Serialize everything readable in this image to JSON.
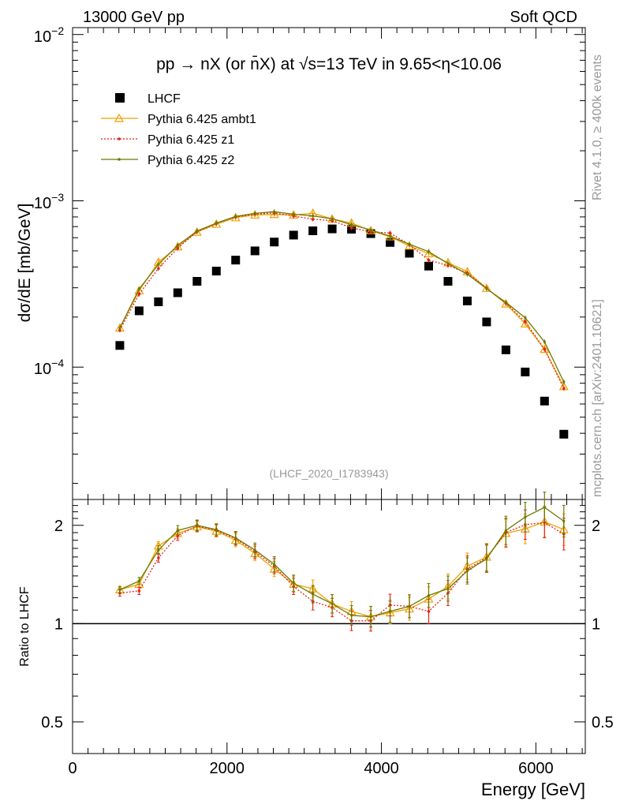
{
  "header": {
    "left": "13000 GeV pp",
    "right": "Soft QCD"
  },
  "side_labels": {
    "rivet": "Rivet 4.1.0, ≥ 400k events",
    "mcplots": "mcplots.cern.ch [arXiv:2401.10621]"
  },
  "colors": {
    "lhcf": "#000000",
    "ambt1": "#f0a000",
    "z1": "#e8231a",
    "z2": "#6b7a00",
    "ref_line": "#000000",
    "watermark": "#999999",
    "side": "#999999"
  },
  "chart_data": [
    {
      "type": "scatter",
      "panel": "main",
      "title": "pp → nX (or n̄X) at √s=13 TeV in 9.65<η<10.06",
      "watermark": "(LHCF_2020_I1783943)",
      "xlabel": "Energy [GeV]",
      "ylabel": "dσ/dE [mb/GeV]",
      "yscale": "log",
      "xlim": [
        0,
        6640
      ],
      "ylim": [
        1.6e-05,
        0.011
      ],
      "ytick_labels": [
        "10⁻⁴",
        "10⁻³",
        "10⁻²"
      ],
      "legend_position": "top-left",
      "x": [
        612,
        862,
        1112,
        1362,
        1612,
        1862,
        2112,
        2362,
        2612,
        2862,
        3112,
        3362,
        3612,
        3862,
        4112,
        4362,
        4612,
        4862,
        5112,
        5362,
        5612,
        5862,
        6112,
        6362
      ],
      "series": [
        {
          "name": "LHCF",
          "style": "square",
          "values": [
            0.000135,
            0.000218,
            0.000247,
            0.00028,
            0.000328,
            0.000378,
            0.00044,
            0.0005,
            0.000565,
            0.000622,
            0.00066,
            0.000678,
            0.000675,
            0.000635,
            0.000562,
            0.000484,
            0.000405,
            0.000328,
            0.00025,
            0.000187,
            0.000127,
            9.35e-05,
            6.25e-05,
            3.95e-05
          ]
        },
        {
          "name": "Pythia 6.425 ambt1",
          "style": "triangle",
          "values": [
            0.000172,
            0.000288,
            0.000428,
            0.00053,
            0.000648,
            0.000724,
            0.000792,
            0.000822,
            0.000828,
            0.000822,
            0.000842,
            0.000778,
            0.000735,
            0.000662,
            0.000608,
            0.000535,
            0.000482,
            0.000425,
            0.000375,
            0.000298,
            0.00024,
            0.000182,
            0.000128,
            7.65e-05
          ]
        },
        {
          "name": "Pythia 6.425 z1",
          "style": "dotted",
          "values": [
            0.000167,
            0.000275,
            0.000392,
            0.00052,
            0.000652,
            0.00073,
            0.0008,
            0.00083,
            0.000845,
            0.00081,
            0.000775,
            0.00076,
            0.000688,
            0.00065,
            0.00064,
            0.000545,
            0.00044,
            0.000408,
            0.000368,
            0.000298,
            0.000242,
            0.000188,
            0.000128,
            7.45e-05
          ]
        },
        {
          "name": "Pythia 6.425 z2",
          "style": "solid",
          "values": [
            0.000172,
            0.000295,
            0.000415,
            0.00054,
            0.000658,
            0.000735,
            0.000805,
            0.00084,
            0.00086,
            0.00083,
            0.000812,
            0.00078,
            0.000718,
            0.000668,
            0.000612,
            0.000548,
            0.000495,
            0.00042,
            0.000362,
            0.000296,
            0.000245,
            0.000198,
            0.000142,
            8.15e-05
          ]
        }
      ]
    },
    {
      "type": "line",
      "panel": "ratio",
      "ylabel": "Ratio to LHCF",
      "xlabel": "Energy [GeV]",
      "yscale": "log",
      "xlim": [
        0,
        6640
      ],
      "ylim": [
        0.4,
        2.4
      ],
      "yticks": [
        0.5,
        1,
        2
      ],
      "ytick_labels": [
        "0.5",
        "1",
        "2"
      ],
      "xticks": [
        0,
        2000,
        4000,
        6000
      ],
      "xtick_labels": [
        "0",
        "2000",
        "4000",
        "6000"
      ],
      "reference": 1,
      "x": [
        612,
        862,
        1112,
        1362,
        1612,
        1862,
        2112,
        2362,
        2612,
        2862,
        3112,
        3362,
        3612,
        3862,
        4112,
        4362,
        4612,
        4862,
        5112,
        5362,
        5612,
        5862,
        6112,
        6362
      ],
      "series": [
        {
          "name": "Pythia 6.425 ambt1",
          "values": [
            1.27,
            1.32,
            1.73,
            1.89,
            1.98,
            1.92,
            1.8,
            1.64,
            1.47,
            1.32,
            1.28,
            1.15,
            1.09,
            1.05,
            1.08,
            1.11,
            1.19,
            1.3,
            1.5,
            1.6,
            1.89,
            1.95,
            2.05,
            1.94
          ]
        },
        {
          "name": "Pythia 6.425 z1",
          "values": [
            1.24,
            1.26,
            1.59,
            1.86,
            1.99,
            1.93,
            1.82,
            1.66,
            1.5,
            1.3,
            1.17,
            1.12,
            1.02,
            1.02,
            1.14,
            1.13,
            1.09,
            1.24,
            1.47,
            1.59,
            1.9,
            2.01,
            2.04,
            1.88
          ]
        },
        {
          "name": "Pythia 6.425 z2",
          "values": [
            1.27,
            1.35,
            1.68,
            1.93,
            2.0,
            1.94,
            1.83,
            1.68,
            1.52,
            1.33,
            1.23,
            1.15,
            1.06,
            1.05,
            1.09,
            1.13,
            1.22,
            1.28,
            1.45,
            1.58,
            1.93,
            2.12,
            2.27,
            2.06
          ]
        }
      ]
    }
  ],
  "legend": [
    {
      "label": "LHCF",
      "style": "square"
    },
    {
      "label": "Pythia 6.425 ambt1",
      "style": "triangle"
    },
    {
      "label": "Pythia 6.425 z1",
      "style": "dotted"
    },
    {
      "label": "Pythia 6.425 z2",
      "style": "solid"
    }
  ]
}
